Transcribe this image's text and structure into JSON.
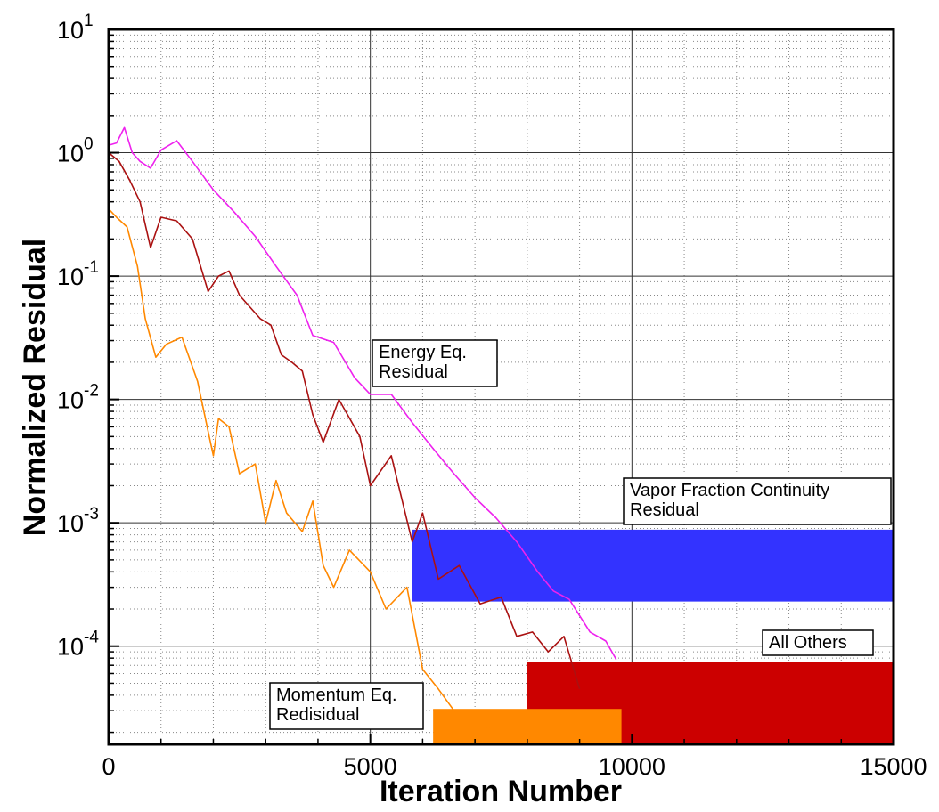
{
  "chart_data": {
    "type": "line",
    "xlabel": "Iteration Number",
    "ylabel": "Normalized Residual",
    "xlim": [
      0,
      15000
    ],
    "ylim": [
      1.6e-05,
      10
    ],
    "y_scale": "log",
    "grid": true,
    "x_ticks": [
      0,
      5000,
      10000,
      15000
    ],
    "x_tick_labels": [
      "0",
      "5000",
      "10000",
      "15000"
    ],
    "y_tick_labels": [
      {
        "base": "10",
        "exp": "1",
        "value": 10
      },
      {
        "base": "10",
        "exp": "0",
        "value": 1
      },
      {
        "base": "10",
        "exp": "-1",
        "value": 0.1
      },
      {
        "base": "10",
        "exp": "-2",
        "value": 0.01
      },
      {
        "base": "10",
        "exp": "-3",
        "value": 0.001
      },
      {
        "base": "10",
        "exp": "-4",
        "value": 0.0001
      }
    ],
    "series": [
      {
        "color": "#ee22ee",
        "x": [
          0,
          150,
          300,
          450,
          600,
          800,
          1000,
          1300,
          1600,
          2000,
          2400,
          2800,
          3200,
          3600,
          3900,
          4300,
          4700,
          5000,
          5400,
          5800,
          6200,
          6600,
          7000,
          7400,
          7800,
          8200,
          8500,
          8800,
          9200,
          9500,
          9700
        ],
        "y": [
          1.15,
          1.2,
          1.6,
          1.0,
          0.85,
          0.75,
          1.05,
          1.25,
          0.85,
          0.5,
          0.33,
          0.21,
          0.12,
          0.07,
          0.033,
          0.029,
          0.015,
          0.011,
          0.011,
          0.0065,
          0.004,
          0.0025,
          0.0016,
          0.0011,
          0.0007,
          0.0004,
          0.00028,
          0.00024,
          0.00013,
          0.00011,
          7.8e-05
        ]
      },
      {
        "color": "#aa1111",
        "x": [
          0,
          200,
          400,
          600,
          800,
          1000,
          1300,
          1600,
          1900,
          2100,
          2300,
          2500,
          2900,
          3100,
          3300,
          3500,
          3700,
          3900,
          4100,
          4400,
          4800,
          5000,
          5400,
          5800,
          6000,
          6300,
          6700,
          7100,
          7500,
          7800,
          8100,
          8400,
          8700,
          9000
        ],
        "y": [
          1.0,
          0.85,
          0.6,
          0.4,
          0.17,
          0.3,
          0.28,
          0.2,
          0.075,
          0.1,
          0.11,
          0.07,
          0.045,
          0.04,
          0.023,
          0.02,
          0.017,
          0.0075,
          0.0045,
          0.01,
          0.005,
          0.002,
          0.0035,
          0.0007,
          0.0012,
          0.00035,
          0.00045,
          0.00022,
          0.00025,
          0.00012,
          0.00013,
          9e-05,
          0.00012,
          4.5e-05
        ]
      },
      {
        "color": "#ff8800",
        "x": [
          0,
          150,
          350,
          550,
          700,
          900,
          1100,
          1400,
          1700,
          1900,
          2000,
          2100,
          2300,
          2500,
          2800,
          3000,
          3200,
          3400,
          3700,
          3900,
          4100,
          4300,
          4600,
          5000,
          5300,
          5700,
          6000,
          6300,
          6600,
          7000,
          7400
        ],
        "y": [
          0.35,
          0.3,
          0.25,
          0.12,
          0.045,
          0.022,
          0.028,
          0.032,
          0.014,
          0.0055,
          0.0035,
          0.007,
          0.006,
          0.0025,
          0.003,
          0.001,
          0.0022,
          0.0012,
          0.00085,
          0.0015,
          0.00045,
          0.0003,
          0.0006,
          0.0004,
          0.0002,
          0.0003,
          6.5e-05,
          4.5e-05,
          3e-05,
          2.5e-05,
          2e-05
        ]
      }
    ],
    "oscillation_bands": [
      {
        "color": "#3333ff",
        "x_start": 5800,
        "x_end": 15000,
        "low": 0.00023,
        "high": 0.00088
      },
      {
        "color": "#cc0000",
        "x_start": 8000,
        "x_end": 15000,
        "low": 1.6e-05,
        "high": 7.5e-05
      },
      {
        "color": "#ff8800",
        "x_start": 6200,
        "x_end": 9800,
        "low": 1.6e-05,
        "high": 3.1e-05
      }
    ],
    "annotations": [
      {
        "text_lines": [
          "Energy Eq.",
          "Residual"
        ]
      },
      {
        "text_lines": [
          "Vapor Fraction Continuity",
          "Residual"
        ]
      },
      {
        "text_lines": [
          "All Others"
        ]
      },
      {
        "text_lines": [
          "Momentum Eq.",
          "Redisidual"
        ]
      }
    ]
  }
}
